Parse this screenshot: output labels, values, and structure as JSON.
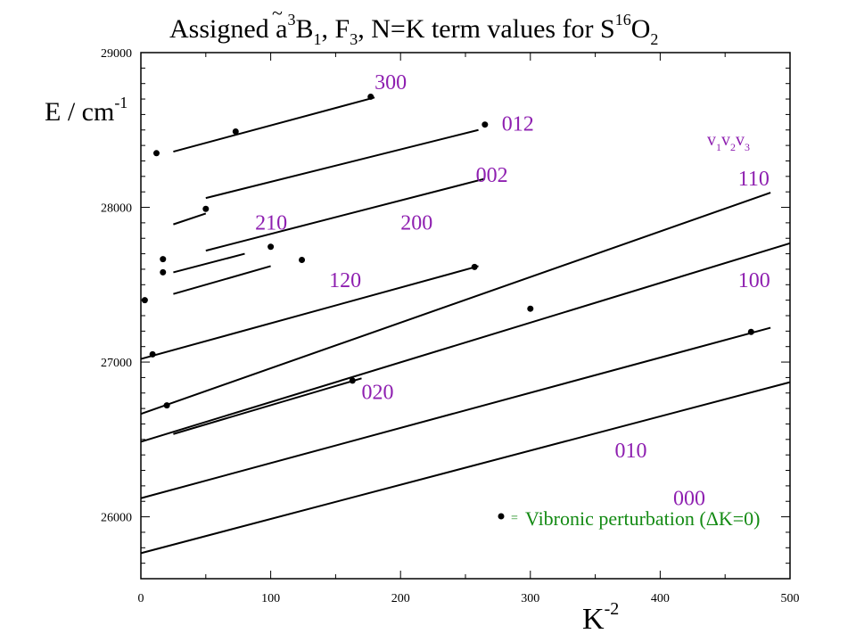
{
  "chart_data": {
    "type": "line",
    "title": "Assigned ã³B₁, F₃, N=K term values for S¹⁶O₂",
    "title_parts": {
      "prefix": "Assigned ",
      "symbol": "a",
      "symbol_tilde": "~",
      "symbol_sup": "3",
      "state": "B",
      "state_sub": "1",
      "rest": ", F",
      "rest_sub": "3",
      "rest2": ", N=K term values for S",
      "isotope_sup": "16",
      "mol": "O",
      "mol_sub": "2"
    },
    "ylabel": "E / cm",
    "ylabel_sup": "-1",
    "xlabel": "K",
    "xlabel_sup": "-2",
    "xlim": [
      0,
      500
    ],
    "ylim": [
      25600,
      29000
    ],
    "x_ticks": [
      0,
      100,
      200,
      300,
      400,
      500
    ],
    "y_ticks": [
      26000,
      27000,
      28000,
      29000
    ],
    "grid": false,
    "series_color": "#000000",
    "label_color": "#8e1fb0",
    "legend_color": "#138a13",
    "vib_header": {
      "base": "v",
      "subs": [
        "1",
        "2",
        "3"
      ]
    },
    "series": [
      {
        "name": "000",
        "x": [
          0,
          500
        ],
        "y": [
          25765,
          26870
        ],
        "label_at": [
          410,
          26075
        ]
      },
      {
        "name": "010",
        "x": [
          0,
          485
        ],
        "y": [
          26120,
          27222
        ],
        "label_at": [
          365,
          26385
        ]
      },
      {
        "name": "020",
        "x": [
          25,
          170
        ],
        "y": [
          26535,
          26895
        ],
        "label_at": [
          170,
          26760
        ]
      },
      {
        "name": "100",
        "x": [
          0,
          500
        ],
        "y": [
          26485,
          27768
        ],
        "label_at": [
          460,
          27485
        ]
      },
      {
        "name": "110",
        "x": [
          0,
          485
        ],
        "y": [
          26665,
          28095
        ],
        "label_at": [
          460,
          28140
        ]
      },
      {
        "name": "120",
        "x": [
          0,
          260
        ],
        "y": [
          27020,
          27620
        ],
        "label_at": [
          145,
          27485
        ]
      },
      {
        "name": "200",
        "x": [
          50,
          265
        ],
        "y": [
          27720,
          28185
        ],
        "label_at": [
          200,
          27855
        ]
      },
      {
        "name": "210",
        "x": [
          25,
          80
        ],
        "y": [
          27580,
          27700
        ],
        "label_at": [
          88,
          27855
        ]
      },
      {
        "name": "210b",
        "x": [
          25,
          100
        ],
        "y": [
          27440,
          27620
        ],
        "label_at": null
      },
      {
        "name": "002",
        "x": [
          25,
          50
        ],
        "y": [
          27890,
          27960
        ],
        "label_at": [
          258,
          28165
        ]
      },
      {
        "name": "012",
        "x": [
          50,
          260
        ],
        "y": [
          28060,
          28500
        ],
        "label_at": [
          278,
          28495
        ]
      },
      {
        "name": "300",
        "x": [
          25,
          180
        ],
        "y": [
          28360,
          28710
        ],
        "label_at": [
          180,
          28765
        ]
      }
    ],
    "series_label_names": {
      "000": "000",
      "010": "010",
      "020": "020",
      "100": "100",
      "110": "110",
      "120": "120",
      "200": "200",
      "210": "210",
      "002": "002",
      "012": "012",
      "300": "300"
    },
    "perturbations": {
      "x": [
        12,
        73,
        177,
        265,
        50,
        17,
        17,
        100,
        124,
        3,
        257,
        9,
        300,
        20,
        163,
        470
      ],
      "y": [
        28350,
        28490,
        28715,
        28535,
        27990,
        27665,
        27580,
        27745,
        27660,
        27400,
        27615,
        27050,
        27345,
        26720,
        26880,
        27195
      ]
    },
    "legend": {
      "marker": "•",
      "equals": "=",
      "text": "Vibronic perturbation (ΔK=0)"
    }
  }
}
